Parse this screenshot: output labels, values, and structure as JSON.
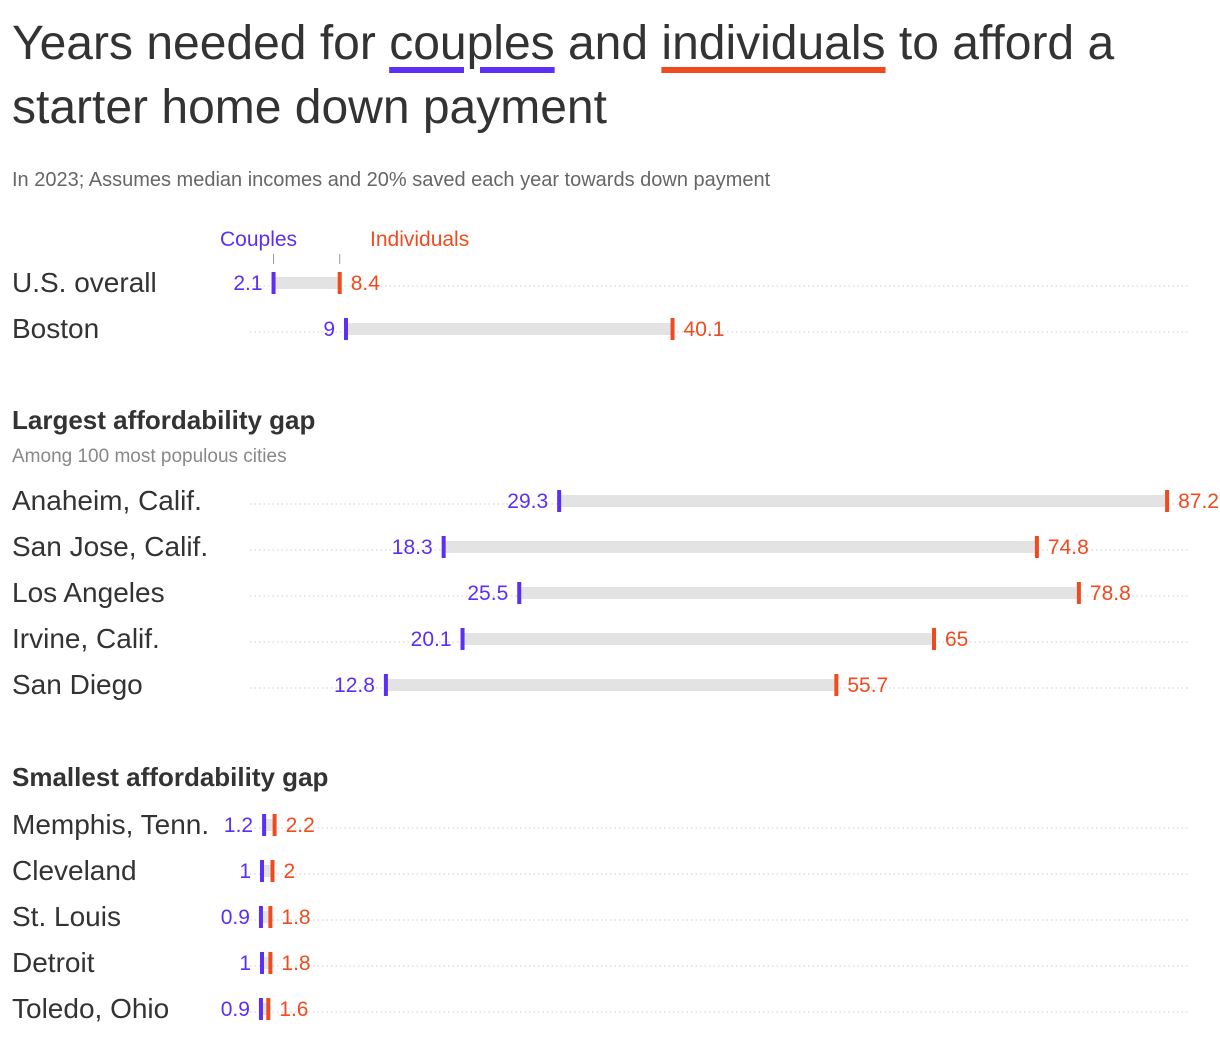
{
  "title": {
    "before": "Years needed for ",
    "couples": "couples",
    "middle": " and ",
    "individuals": "individuals",
    "after": " to afford a starter home down payment"
  },
  "subtitle": "In 2023; Assumes median incomes and 20% saved each year towards down payment",
  "colors": {
    "couples": "#5b2ff5",
    "individuals": "#f04b1e",
    "bar": "#e3e3e3",
    "text": "#333333",
    "muted": "#888888"
  },
  "legend": {
    "couples": "Couples",
    "individuals": "Individuals"
  },
  "sections": [
    {
      "title": "",
      "note": ""
    },
    {
      "title": "Largest affordability gap",
      "note": "Among 100 most populous cities"
    },
    {
      "title": "Smallest affordability gap",
      "note": ""
    }
  ],
  "chart_data": {
    "type": "dumbbell",
    "xlim": [
      0,
      87.2
    ],
    "grid": false,
    "series": [
      {
        "name": "Couples",
        "color": "#5b2ff5"
      },
      {
        "name": "Individuals",
        "color": "#f04b1e"
      }
    ],
    "rows": [
      {
        "section": 0,
        "label": "U.S. overall",
        "couples": 2.1,
        "individuals": 8.4
      },
      {
        "section": 0,
        "label": "Boston",
        "couples": 9,
        "individuals": 40.1
      },
      {
        "section": 1,
        "label": "Anaheim, Calif.",
        "couples": 29.3,
        "individuals": 87.2
      },
      {
        "section": 1,
        "label": "San Jose, Calif.",
        "couples": 18.3,
        "individuals": 74.8
      },
      {
        "section": 1,
        "label": "Los Angeles",
        "couples": 25.5,
        "individuals": 78.8
      },
      {
        "section": 1,
        "label": "Irvine, Calif.",
        "couples": 20.1,
        "individuals": 65
      },
      {
        "section": 1,
        "label": "San Diego",
        "couples": 12.8,
        "individuals": 55.7
      },
      {
        "section": 2,
        "label": "Memphis, Tenn.",
        "couples": 1.2,
        "individuals": 2.2
      },
      {
        "section": 2,
        "label": "Cleveland",
        "couples": 1,
        "individuals": 2
      },
      {
        "section": 2,
        "label": "St. Louis",
        "couples": 0.9,
        "individuals": 1.8
      },
      {
        "section": 2,
        "label": "Detroit",
        "couples": 1,
        "individuals": 1.8
      },
      {
        "section": 2,
        "label": "Toledo, Ohio",
        "couples": 0.9,
        "individuals": 1.6
      }
    ]
  }
}
